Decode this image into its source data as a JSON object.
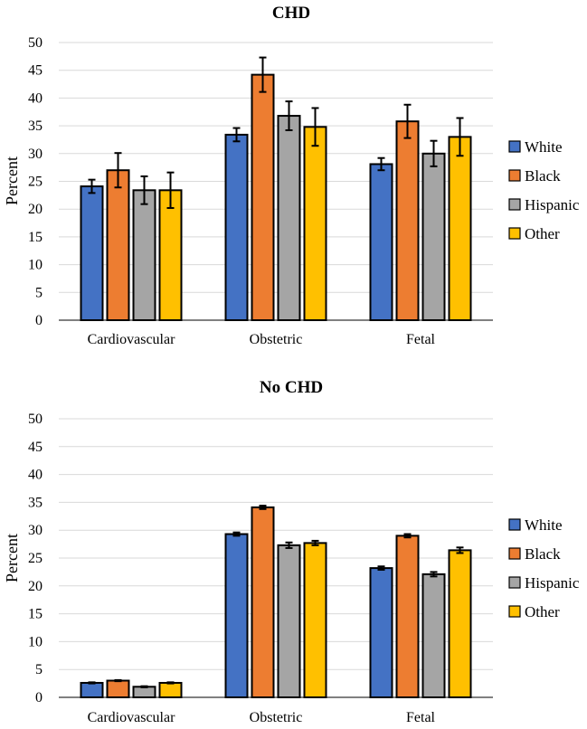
{
  "chart_data": [
    {
      "type": "bar",
      "title": "CHD",
      "ylabel": "Percent",
      "xlabel": "",
      "ylim": [
        0,
        50
      ],
      "yticks": [
        0,
        5,
        10,
        15,
        20,
        25,
        30,
        35,
        40,
        45,
        50
      ],
      "categories": [
        "Cardiovascular",
        "Obstetric",
        "Fetal"
      ],
      "legend_position": "right",
      "series": [
        {
          "name": "White",
          "color": "#4472C4",
          "values": [
            24.1,
            33.4,
            28.1
          ],
          "errors": [
            1.2,
            1.2,
            1.1
          ]
        },
        {
          "name": "Black",
          "color": "#ED7D31",
          "values": [
            27.0,
            44.2,
            35.8
          ],
          "errors": [
            3.1,
            3.1,
            3.0
          ]
        },
        {
          "name": "Hispanic",
          "color": "#A5A5A5",
          "values": [
            23.4,
            36.8,
            30.0
          ],
          "errors": [
            2.5,
            2.6,
            2.3
          ]
        },
        {
          "name": "Other",
          "color": "#FFC000",
          "values": [
            23.4,
            34.8,
            33.0
          ],
          "errors": [
            3.2,
            3.4,
            3.4
          ]
        }
      ]
    },
    {
      "type": "bar",
      "title": "No CHD",
      "ylabel": "Percent",
      "xlabel": "",
      "ylim": [
        0,
        50
      ],
      "yticks": [
        0,
        5,
        10,
        15,
        20,
        25,
        30,
        35,
        40,
        45,
        50
      ],
      "categories": [
        "Cardiovascular",
        "Obstetric",
        "Fetal"
      ],
      "legend_position": "right",
      "series": [
        {
          "name": "White",
          "color": "#4472C4",
          "values": [
            2.6,
            29.3,
            23.2
          ],
          "errors": [
            0.1,
            0.3,
            0.3
          ]
        },
        {
          "name": "Black",
          "color": "#ED7D31",
          "values": [
            3.0,
            34.1,
            29.0
          ],
          "errors": [
            0.1,
            0.3,
            0.3
          ]
        },
        {
          "name": "Hispanic",
          "color": "#A5A5A5",
          "values": [
            1.9,
            27.3,
            22.1
          ],
          "errors": [
            0.1,
            0.5,
            0.4
          ]
        },
        {
          "name": "Other",
          "color": "#FFC000",
          "values": [
            2.6,
            27.7,
            26.4
          ],
          "errors": [
            0.1,
            0.4,
            0.5
          ]
        }
      ]
    }
  ]
}
